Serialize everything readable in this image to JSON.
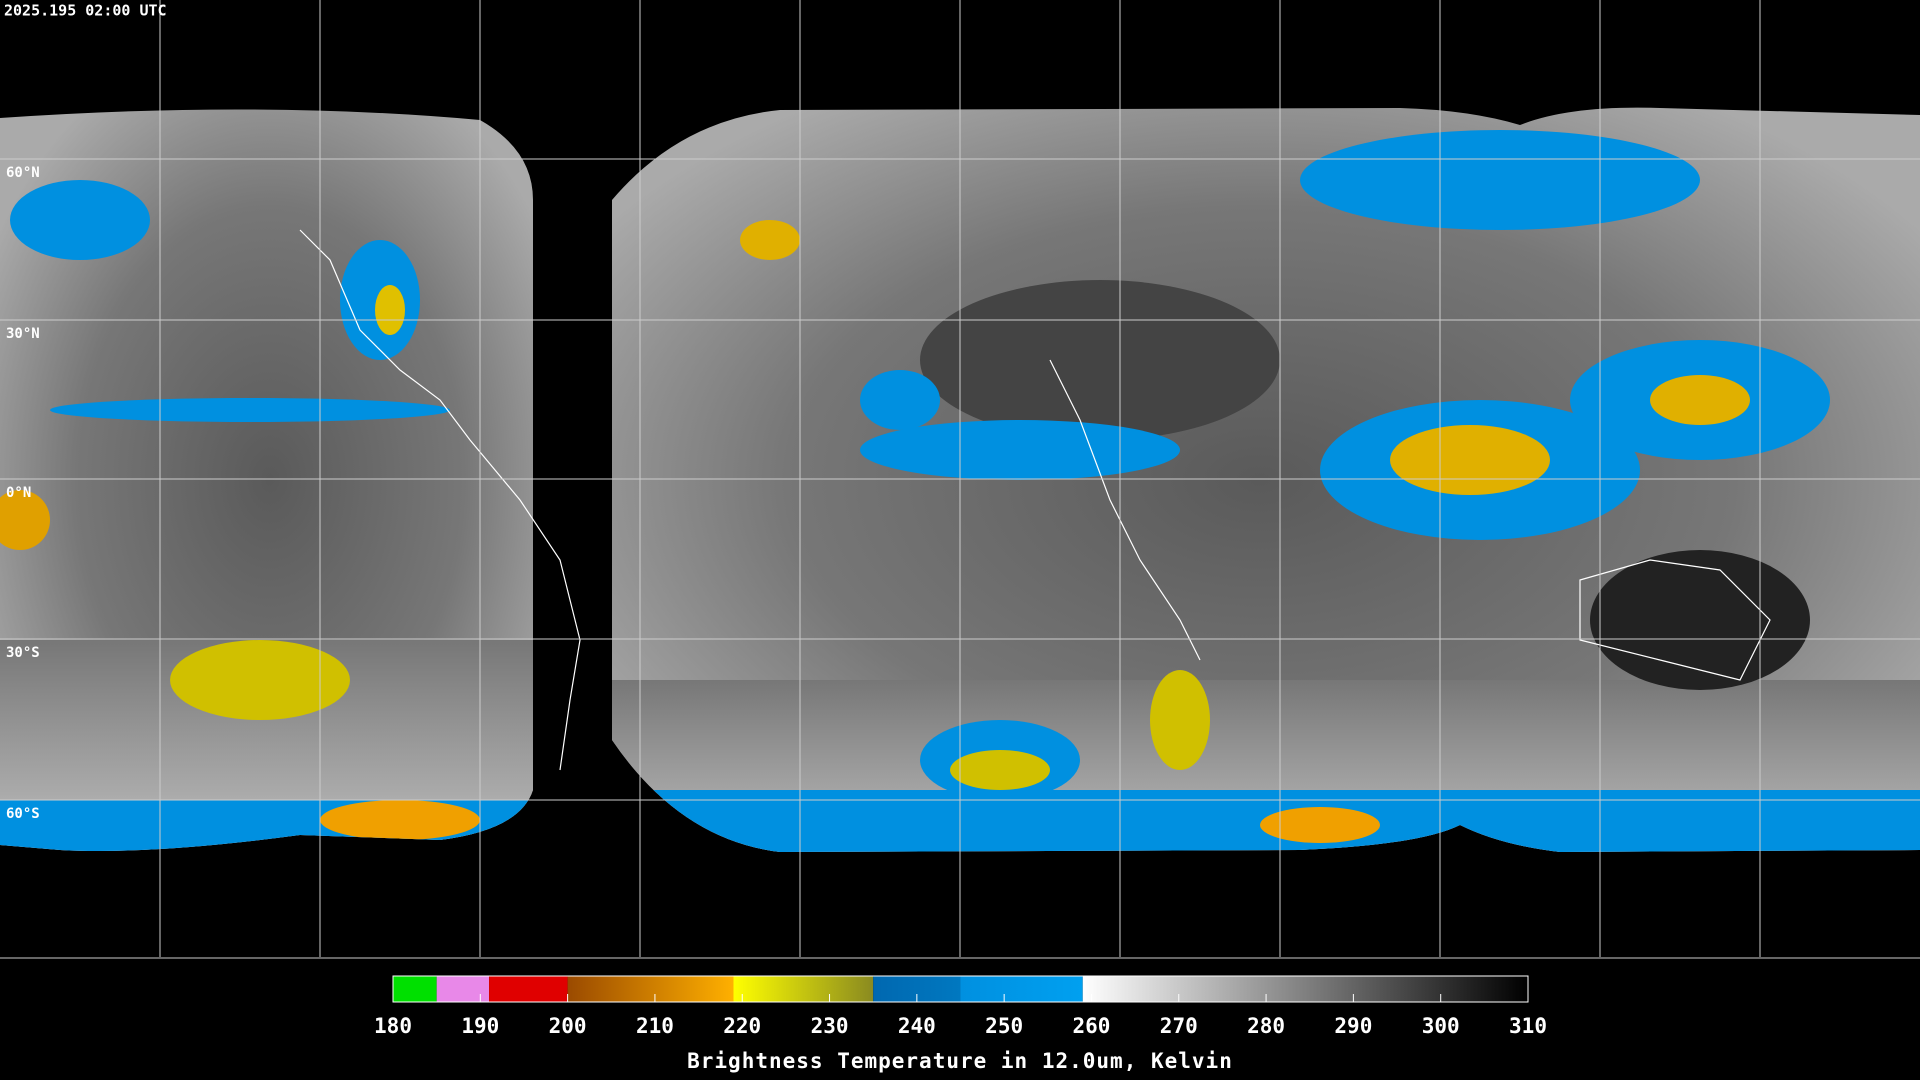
{
  "header": {
    "timestamp": "2025.195 02:00 UTC"
  },
  "map": {
    "lat_labels": [
      "60°N",
      "30°N",
      "0°N",
      "30°S",
      "60°S"
    ]
  },
  "colorbar": {
    "range": [
      180,
      310
    ],
    "ticks": [
      180,
      190,
      200,
      210,
      220,
      230,
      240,
      250,
      260,
      270,
      280,
      290,
      300,
      310
    ],
    "segments": [
      {
        "from": 180,
        "to": 185,
        "colors": [
          "#00e000",
          "#00e000"
        ]
      },
      {
        "from": 185,
        "to": 191,
        "colors": [
          "#e888e8",
          "#e888e8"
        ]
      },
      {
        "from": 191,
        "to": 200,
        "colors": [
          "#e00000",
          "#e00000"
        ]
      },
      {
        "from": 200,
        "to": 219,
        "colors": [
          "#9a4a00",
          "#ffb000"
        ]
      },
      {
        "from": 219,
        "to": 235,
        "colors": [
          "#ffff00",
          "#8a8a20"
        ]
      },
      {
        "from": 235,
        "to": 245,
        "colors": [
          "#0068b0",
          "#0078c0"
        ]
      },
      {
        "from": 245,
        "to": 259,
        "colors": [
          "#0090e0",
          "#00a0f0"
        ]
      },
      {
        "from": 259,
        "to": 310,
        "colors": [
          "#ffffff",
          "#000000"
        ]
      }
    ],
    "label": "Brightness Temperature in 12.0um, Kelvin"
  }
}
